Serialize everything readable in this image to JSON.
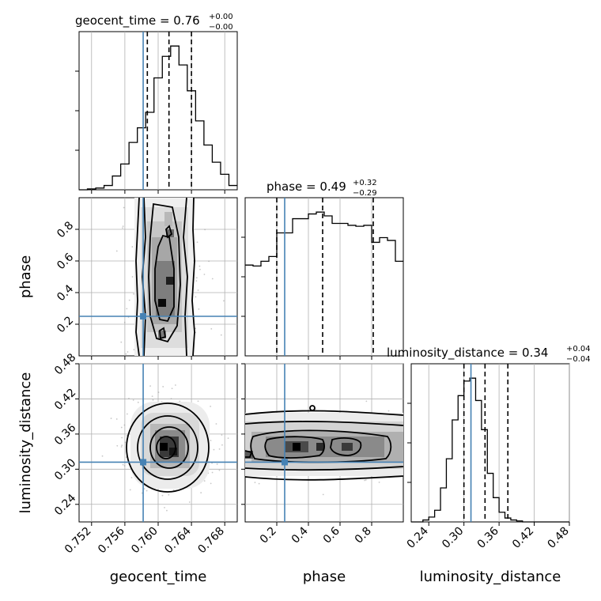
{
  "chart_data": {
    "type": "corner",
    "parameters": [
      "geocent_time",
      "phase",
      "luminosity_distance"
    ],
    "truths": {
      "geocent_time": 0.7582,
      "phase": 0.25,
      "luminosity_distance": 0.312
    },
    "summaries": [
      {
        "param": "geocent_time",
        "label": "geocent_time = 0.76",
        "sup": "+0.00",
        "sub": "−0.00",
        "quantiles": [
          0.7587,
          0.7613,
          0.764
        ]
      },
      {
        "param": "phase",
        "label": "phase = 0.49",
        "sup": "+0.32",
        "sub": "−0.29",
        "quantiles": [
          0.2,
          0.49,
          0.81
        ]
      },
      {
        "param": "luminosity_distance",
        "label": "luminosity_distance = 0.34",
        "sup": "+0.04",
        "sub": "−0.04",
        "quantiles": [
          0.3,
          0.336,
          0.375
        ]
      }
    ],
    "ranges": {
      "geocent_time": [
        0.7505,
        0.7695
      ],
      "phase": [
        0.0,
        1.0
      ],
      "luminosity_distance": [
        0.21,
        0.48
      ]
    },
    "ticks": {
      "geocent_time": [
        "0.752",
        "0.756",
        "0.760",
        "0.764",
        "0.768"
      ],
      "phase": [
        "0.2",
        "0.4",
        "0.6",
        "0.8"
      ],
      "luminosity_distance": [
        "0.24",
        "0.30",
        "0.36",
        "0.42",
        "0.48"
      ]
    },
    "histograms": {
      "geocent_time": {
        "start": 0.7505,
        "width": 0.001,
        "counts": [
          0,
          1,
          2,
          5,
          16,
          30,
          55,
          72,
          90,
          130,
          155,
          167,
          145,
          115,
          80,
          52,
          32,
          18,
          5
        ]
      },
      "phase": {
        "start": 0.0,
        "width": 0.05,
        "counts": [
          96,
          95,
          100,
          105,
          130,
          130,
          145,
          145,
          150,
          152,
          148,
          140,
          140,
          138,
          137,
          138,
          120,
          125,
          122,
          100
        ]
      },
      "luminosity_distance": {
        "start": 0.21,
        "width": 0.01,
        "counts": [
          0,
          0,
          2,
          5,
          12,
          35,
          65,
          105,
          130,
          145,
          148,
          125,
          95,
          50,
          25,
          10,
          4,
          2,
          1,
          0,
          0,
          0,
          0,
          0,
          0,
          0,
          0
        ]
      }
    },
    "grid": true,
    "truth_color": "#4682b4"
  }
}
